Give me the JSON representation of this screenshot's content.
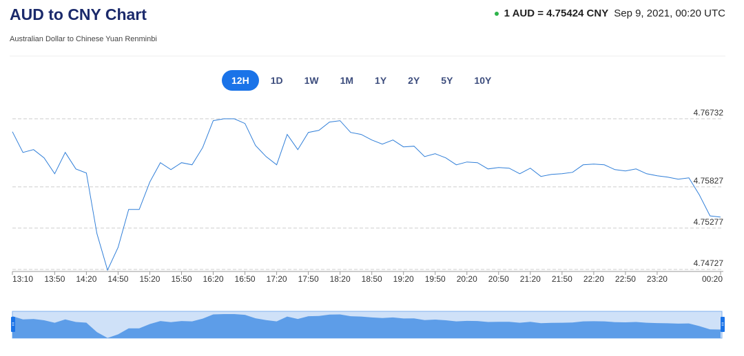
{
  "header": {
    "title": "AUD to CNY Chart",
    "subtitle": "Australian Dollar to Chinese Yuan Renminbi",
    "rate": "1 AUD = 4.75424 CNY",
    "timestamp": "Sep 9, 2021, 00:20 UTC"
  },
  "range_buttons": {
    "options": [
      "12H",
      "1D",
      "1W",
      "1M",
      "1Y",
      "2Y",
      "5Y",
      "10Y"
    ],
    "selected": "12H"
  },
  "chart_data": {
    "type": "line",
    "color": "#2f7ed8",
    "navigator_fill": "#5d9de8",
    "grid": true,
    "categories": [
      "13:10",
      null,
      null,
      null,
      "13:50",
      null,
      null,
      "14:20",
      null,
      null,
      "14:50",
      null,
      null,
      "15:20",
      null,
      null,
      "15:50",
      null,
      null,
      "16:20",
      null,
      null,
      "16:50",
      null,
      null,
      "17:20",
      null,
      null,
      "17:50",
      null,
      null,
      "18:20",
      null,
      null,
      "18:50",
      null,
      null,
      "19:20",
      null,
      null,
      "19:50",
      null,
      null,
      "20:20",
      null,
      null,
      "20:50",
      null,
      null,
      "21:20",
      null,
      null,
      "21:50",
      null,
      null,
      "22:20",
      null,
      null,
      "22:50",
      null,
      null,
      "23:20",
      null,
      null,
      null,
      null,
      null,
      "00:20"
    ],
    "values": [
      4.7656,
      4.76285,
      4.76322,
      4.76212,
      4.76001,
      4.76285,
      4.76065,
      4.7601,
      4.75204,
      4.74718,
      4.7502,
      4.75525,
      4.75525,
      4.75891,
      4.76148,
      4.76056,
      4.76148,
      4.7612,
      4.7635,
      4.76707,
      4.76732,
      4.76732,
      4.7667,
      4.76377,
      4.7623,
      4.7612,
      4.76524,
      4.76322,
      4.76551,
      4.76579,
      4.76689,
      4.76707,
      4.76551,
      4.76524,
      4.7645,
      4.76395,
      4.7645,
      4.76359,
      4.76368,
      4.7623,
      4.76267,
      4.76212,
      4.7612,
      4.76157,
      4.76148,
      4.76065,
      4.76084,
      4.76075,
      4.76001,
      4.76075,
      4.75965,
      4.75992,
      4.76001,
      4.7602,
      4.7612,
      4.7613,
      4.7612,
      4.76056,
      4.76038,
      4.76065,
      4.76001,
      4.75974,
      4.75955,
      4.75928,
      4.75946,
      4.75717,
      4.7544,
      4.75424
    ],
    "ylim": [
      4.747,
      4.7685
    ],
    "yticks": [
      4.74727,
      4.75277,
      4.75827,
      4.76732
    ]
  }
}
